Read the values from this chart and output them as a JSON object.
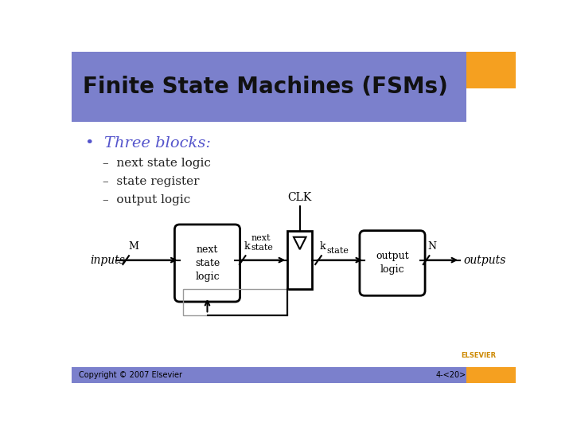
{
  "title": "Finite State Machines (FSMs)",
  "title_bg": "#7B80CC",
  "title_orange": "#F5A020",
  "slide_bg": "#FFFFFF",
  "bullet_text": "Three blocks:",
  "bullet_color": "#5555CC",
  "sub_bullets": [
    "next state logic",
    "state register",
    "output logic"
  ],
  "sub_color": "#222222",
  "footer_left": "Copyright © 2007 Elsevier",
  "footer_right": "4-<20>",
  "footer_bar_color": "#7B80CC",
  "footer_orange": "#F5A020",
  "elsevier_color": "#CC8800"
}
